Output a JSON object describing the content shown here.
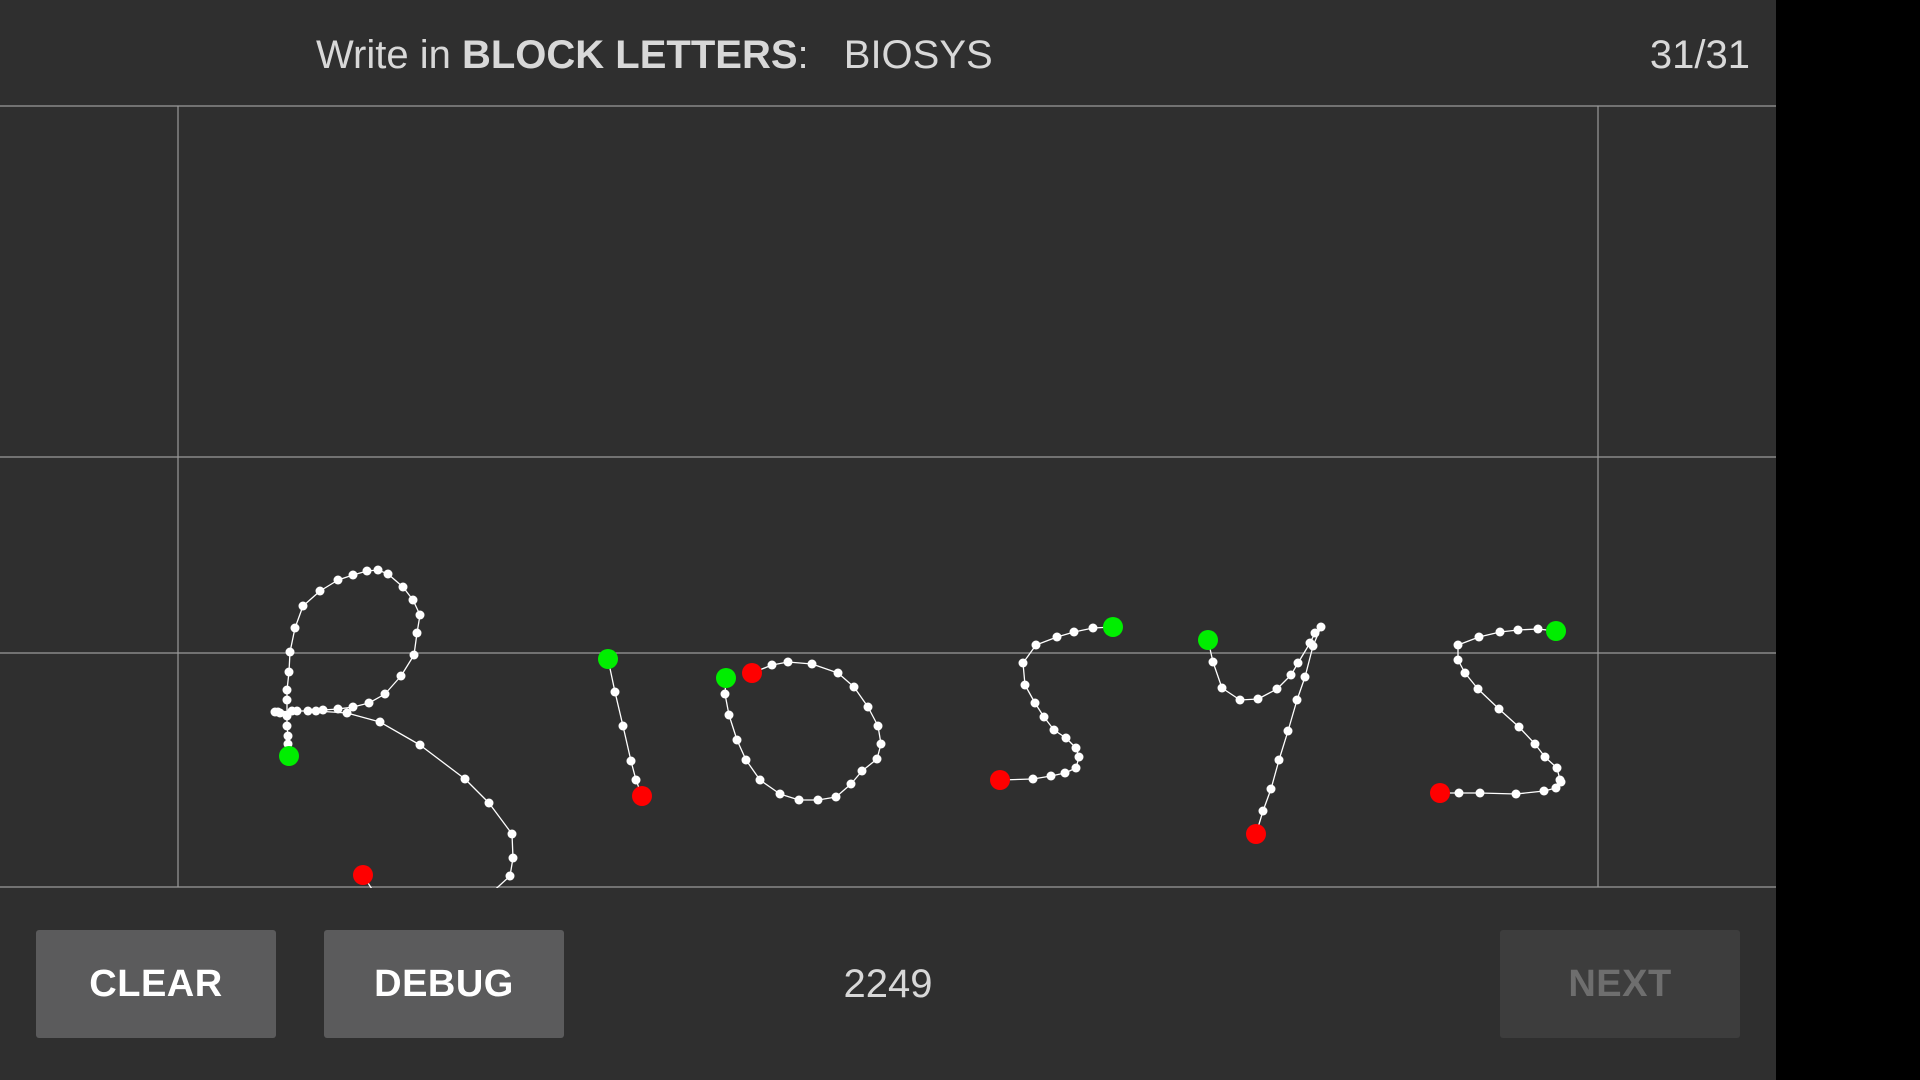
{
  "header": {
    "prompt_prefix": "Write in",
    "prompt_mode": "BLOCK LETTERS",
    "prompt_colon": ":",
    "target_word": "BIOSYS",
    "progress": "31/31"
  },
  "footer": {
    "clear_label": "CLEAR",
    "debug_label": "DEBUG",
    "score": "2249",
    "next_label": "NEXT"
  },
  "colors": {
    "background": "#2f2f2f",
    "guide_line": "#9a9a9a",
    "stroke": "#ffffff",
    "start_point": "#00ee00",
    "end_point": "#ff0000",
    "button": "#5b5b5c",
    "button_disabled": "#3d3d3d"
  }
}
